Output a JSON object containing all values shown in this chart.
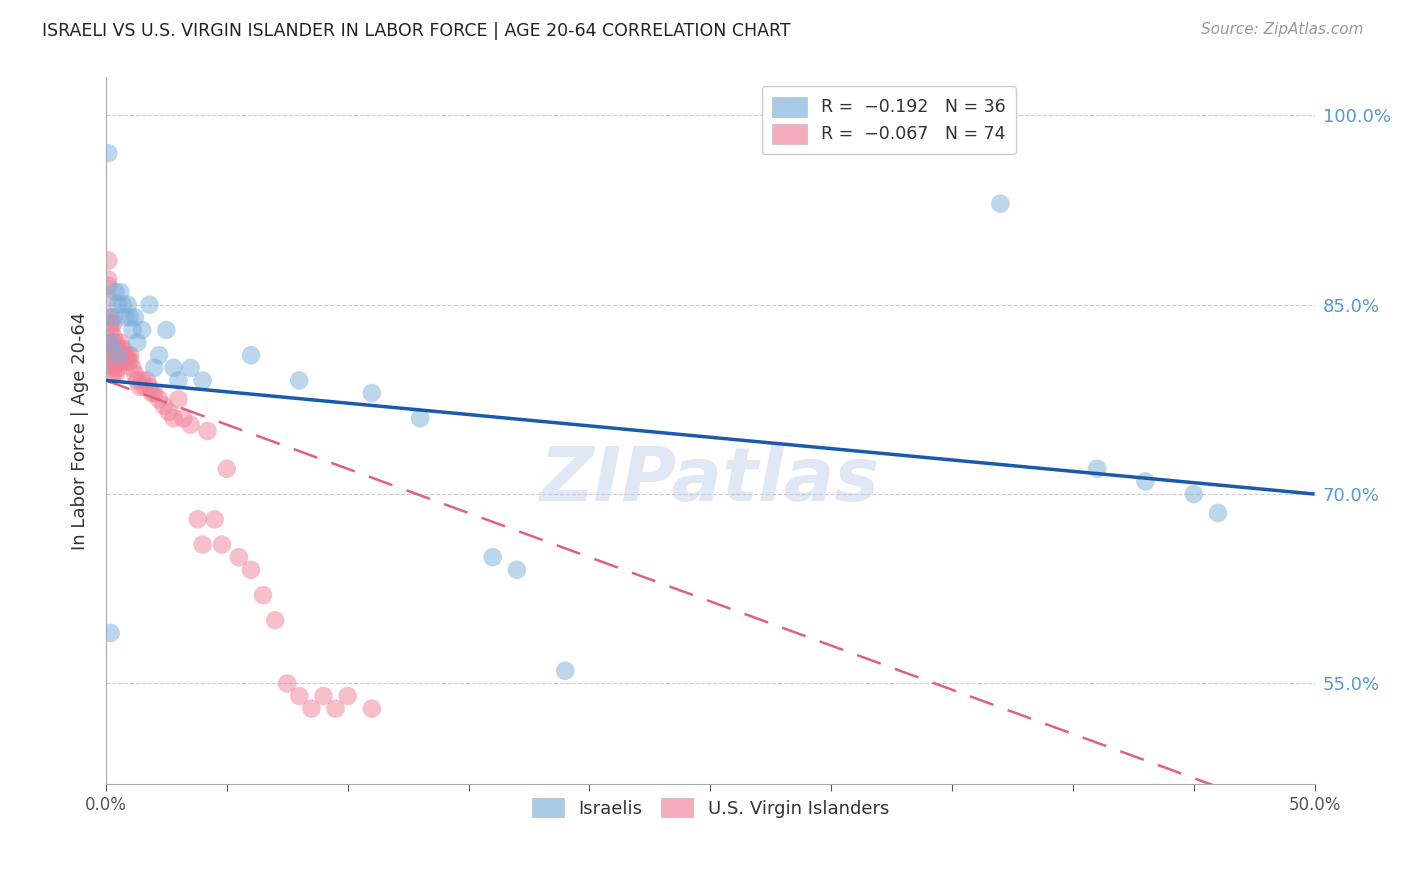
{
  "title": "ISRAELI VS U.S. VIRGIN ISLANDER IN LABOR FORCE | AGE 20-64 CORRELATION CHART",
  "source": "Source: ZipAtlas.com",
  "ylabel": "In Labor Force | Age 20-64",
  "xlim": [
    0.0,
    0.5
  ],
  "ylim": [
    0.47,
    1.03
  ],
  "yticks": [
    0.55,
    0.7,
    0.85,
    1.0
  ],
  "ytick_labels": [
    "55.0%",
    "70.0%",
    "85.0%",
    "100.0%"
  ],
  "xticks": [
    0.0,
    0.05,
    0.1,
    0.15,
    0.2,
    0.25,
    0.3,
    0.35,
    0.4,
    0.45,
    0.5
  ],
  "xtick_labels": [
    "0.0%",
    "",
    "",
    "",
    "",
    "",
    "",
    "",
    "",
    "",
    "50.0%"
  ],
  "israeli_color": "#7aaedb",
  "usvi_color": "#f08098",
  "israeli_line_color": "#1a5aaa",
  "usvi_line_color": "#e06080",
  "watermark": "ZIPatlas",
  "israeli_line": [
    0.0,
    0.5,
    0.79,
    0.7
  ],
  "usvi_line": [
    0.0,
    0.5,
    0.79,
    0.44
  ],
  "israeli_x": [
    0.001,
    0.002,
    0.002,
    0.003,
    0.004,
    0.005,
    0.005,
    0.006,
    0.007,
    0.008,
    0.009,
    0.01,
    0.011,
    0.012,
    0.013,
    0.015,
    0.018,
    0.02,
    0.022,
    0.025,
    0.028,
    0.03,
    0.035,
    0.04,
    0.06,
    0.08,
    0.11,
    0.13,
    0.16,
    0.17,
    0.19,
    0.37,
    0.41,
    0.43,
    0.45,
    0.46
  ],
  "israeli_y": [
    0.97,
    0.59,
    0.82,
    0.84,
    0.86,
    0.85,
    0.81,
    0.86,
    0.85,
    0.84,
    0.85,
    0.84,
    0.83,
    0.84,
    0.82,
    0.83,
    0.85,
    0.8,
    0.81,
    0.83,
    0.8,
    0.79,
    0.8,
    0.79,
    0.81,
    0.79,
    0.78,
    0.76,
    0.65,
    0.64,
    0.56,
    0.93,
    0.72,
    0.71,
    0.7,
    0.685
  ],
  "usvi_x": [
    0.001,
    0.001,
    0.001,
    0.001,
    0.001,
    0.002,
    0.002,
    0.002,
    0.002,
    0.002,
    0.003,
    0.003,
    0.003,
    0.003,
    0.003,
    0.003,
    0.003,
    0.003,
    0.004,
    0.004,
    0.004,
    0.004,
    0.004,
    0.004,
    0.005,
    0.005,
    0.005,
    0.005,
    0.006,
    0.006,
    0.006,
    0.007,
    0.007,
    0.007,
    0.008,
    0.008,
    0.009,
    0.009,
    0.01,
    0.01,
    0.011,
    0.012,
    0.013,
    0.014,
    0.015,
    0.016,
    0.017,
    0.018,
    0.019,
    0.02,
    0.022,
    0.024,
    0.026,
    0.028,
    0.03,
    0.032,
    0.035,
    0.038,
    0.04,
    0.042,
    0.045,
    0.048,
    0.05,
    0.055,
    0.06,
    0.065,
    0.07,
    0.075,
    0.08,
    0.085,
    0.09,
    0.095,
    0.1,
    0.11
  ],
  "usvi_y": [
    0.885,
    0.87,
    0.865,
    0.855,
    0.84,
    0.84,
    0.835,
    0.83,
    0.82,
    0.81,
    0.835,
    0.825,
    0.82,
    0.815,
    0.81,
    0.805,
    0.8,
    0.795,
    0.82,
    0.815,
    0.81,
    0.805,
    0.8,
    0.795,
    0.815,
    0.81,
    0.805,
    0.8,
    0.82,
    0.815,
    0.81,
    0.815,
    0.81,
    0.805,
    0.81,
    0.805,
    0.81,
    0.805,
    0.81,
    0.805,
    0.8,
    0.795,
    0.79,
    0.785,
    0.79,
    0.785,
    0.79,
    0.785,
    0.78,
    0.78,
    0.775,
    0.77,
    0.765,
    0.76,
    0.775,
    0.76,
    0.755,
    0.68,
    0.66,
    0.75,
    0.68,
    0.66,
    0.72,
    0.65,
    0.64,
    0.62,
    0.6,
    0.55,
    0.54,
    0.53,
    0.54,
    0.53,
    0.54,
    0.53
  ]
}
